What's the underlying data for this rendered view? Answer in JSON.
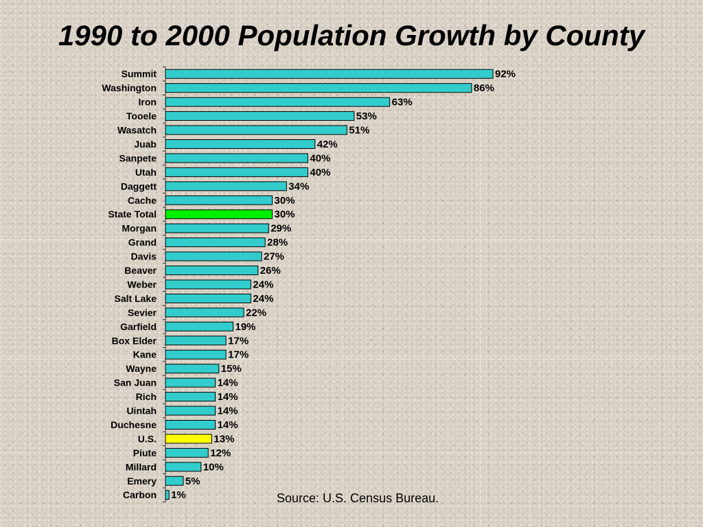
{
  "chart_data": {
    "type": "bar",
    "orientation": "horizontal",
    "title": "1990 to 2000 Population Growth by County",
    "source": "Source: U.S. Census Bureau.",
    "categories": [
      "Summit",
      "Washington",
      "Iron",
      "Tooele",
      "Wasatch",
      "Juab",
      "Sanpete",
      "Utah",
      "Daggett",
      "Cache",
      "State Total",
      "Morgan",
      "Grand",
      "Davis",
      "Beaver",
      "Weber",
      "Salt Lake",
      "Sevier",
      "Garfield",
      "Box Elder",
      "Kane",
      "Wayne",
      "San Juan",
      "Rich",
      "Uintah",
      "Duchesne",
      "U.S.",
      "Piute",
      "Millard",
      "Emery",
      "Carbon"
    ],
    "values": [
      92,
      86,
      63,
      53,
      51,
      42,
      40,
      40,
      34,
      30,
      30,
      29,
      28,
      27,
      26,
      24,
      24,
      22,
      19,
      17,
      17,
      15,
      14,
      14,
      14,
      14,
      13,
      12,
      10,
      5,
      1
    ],
    "value_labels": [
      "92%",
      "86%",
      "63%",
      "53%",
      "51%",
      "42%",
      "40%",
      "40%",
      "34%",
      "30%",
      "30%",
      "29%",
      "28%",
      "27%",
      "26%",
      "24%",
      "24%",
      "22%",
      "19%",
      "17%",
      "17%",
      "15%",
      "14%",
      "14%",
      "14%",
      "14%",
      "13%",
      "12%",
      "10%",
      "5%",
      "1%"
    ],
    "colors": {
      "default": "#33cccc",
      "highlights": {
        "State Total": "#00ee00",
        "U.S.": "#ffff00"
      },
      "border": "#000000"
    },
    "xlim": [
      0,
      92
    ],
    "grid": false,
    "legend": "none"
  }
}
